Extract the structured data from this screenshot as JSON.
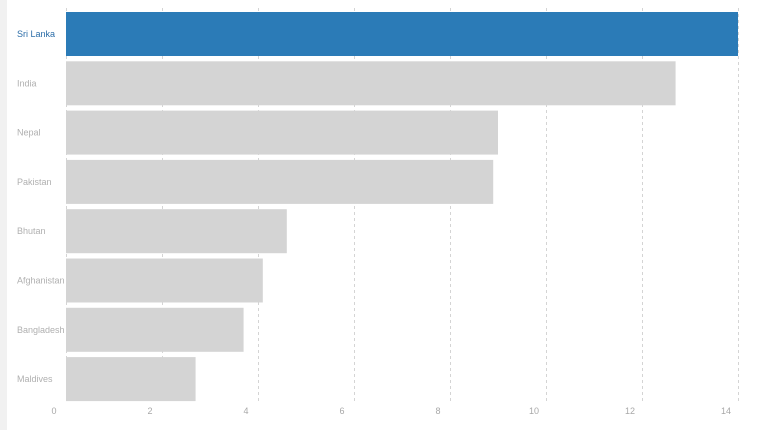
{
  "colors": {
    "highlight": "#2b7bb7",
    "bar": "#d4d4d4",
    "highlight_label": "#2b6da8",
    "label": "#b0b0b0"
  },
  "chart_data": {
    "type": "bar",
    "orientation": "horizontal",
    "categories": [
      "Sri Lanka",
      "India",
      "Nepal",
      "Pakistan",
      "Bhutan",
      "Afghanistan",
      "Bangladesh",
      "Maldives"
    ],
    "values": [
      14.0,
      12.7,
      9.0,
      8.9,
      4.6,
      4.1,
      3.7,
      2.7
    ],
    "highlighted": "Sri Lanka",
    "xlim": [
      0,
      14
    ],
    "xticks": [
      0,
      2,
      4,
      6,
      8,
      10,
      12,
      14
    ],
    "grid": "vertical dashed",
    "title": "",
    "xlabel": "",
    "ylabel": ""
  }
}
